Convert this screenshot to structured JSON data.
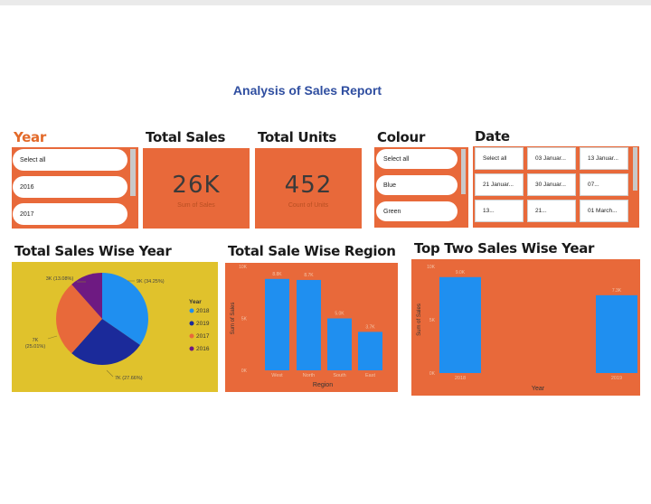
{
  "report": {
    "title": "Analysis of Sales Report"
  },
  "year_slicer": {
    "title": "Year",
    "items": [
      "Select all",
      "2016",
      "2017"
    ]
  },
  "total_sales_card": {
    "title": "Total Sales",
    "value": "26K",
    "label": "Sum of Sales"
  },
  "total_units_card": {
    "title": "Total Units",
    "value": "452",
    "label": "Count of Units"
  },
  "colour_slicer": {
    "title": "Colour",
    "items": [
      "Select all",
      "Blue",
      "Green"
    ]
  },
  "date_slicer": {
    "title": "Date",
    "cells": [
      "Select all",
      "03 Januar...",
      "13 Januar...",
      "21 Januar...",
      "30 Januar...",
      "07...",
      "13...",
      "21...",
      "01 March..."
    ]
  },
  "colors": {
    "panel_orange": "#e8693a",
    "pie_background": "#e0c22c",
    "bar_blue": "#1f8ff0",
    "title_blue": "#2f4ea0"
  },
  "chart_data": [
    {
      "type": "pie",
      "title": "Total Sales Wise Year",
      "legend_title": "Year",
      "legend_position": "right",
      "categories": [
        "2018",
        "2019",
        "2017",
        "2016"
      ],
      "values": [
        9,
        7,
        7,
        3
      ],
      "data_labels": [
        "9K (34.25%)",
        "7K (27.66%)",
        "7K (25.01%)",
        "3K (13.08%)"
      ],
      "colors": [
        "#1f8ff0",
        "#1b2a9a",
        "#e8693a",
        "#6e1a82"
      ]
    },
    {
      "type": "bar",
      "title": "Total Sale Wise Region",
      "categories": [
        "West",
        "North",
        "South",
        "East"
      ],
      "values": [
        8.8,
        8.7,
        5.0,
        3.7
      ],
      "data_labels": [
        "8.8K",
        "8.7K",
        "5.0K",
        "3.7K"
      ],
      "xlabel": "Region",
      "ylabel": "Sum of Sales",
      "ylim": [
        0,
        10
      ],
      "ytick_labels": [
        "0K",
        "5K",
        "10K"
      ],
      "grid": false
    },
    {
      "type": "bar",
      "title": "Top Two Sales Wise Year",
      "categories": [
        "2018",
        "2019"
      ],
      "values": [
        9.0,
        7.3
      ],
      "data_labels": [
        "9.0K",
        "7.3K"
      ],
      "xlabel": "Year",
      "ylabel": "Sum of Sales",
      "ylim": [
        0,
        10
      ],
      "ytick_labels": [
        "0K",
        "5K",
        "10K"
      ],
      "grid": false
    }
  ]
}
